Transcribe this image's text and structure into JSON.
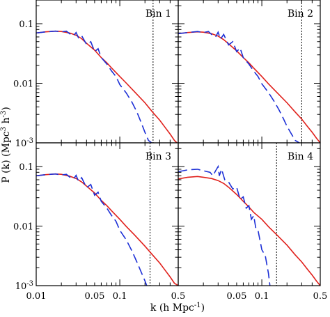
{
  "figure": {
    "xlabel_main": "k (h Mpc",
    "xlabel_sup": "-1",
    "xlabel_end": ")",
    "ylabel_main": "P (k) (Mpc",
    "ylabel_sup1": "3",
    "ylabel_mid": " h",
    "ylabel_sup2": "-3",
    "ylabel_end": ")"
  },
  "chart_data": [
    {
      "type": "line",
      "panel": "top-left",
      "label": "Bin 1",
      "xscale": "log",
      "yscale": "log",
      "xlim": [
        0.01,
        0.5
      ],
      "ylim": [
        0.001,
        0.25
      ],
      "vline_x": 0.25,
      "series": [
        {
          "color": "#e0201b",
          "style": "solid",
          "x": [
            0.01,
            0.013,
            0.017,
            0.02,
            0.025,
            0.03,
            0.035,
            0.04,
            0.05,
            0.06,
            0.07,
            0.08,
            0.1,
            0.12,
            0.15,
            0.2,
            0.25,
            0.3,
            0.35,
            0.4,
            0.45,
            0.5
          ],
          "y": [
            0.07,
            0.073,
            0.075,
            0.074,
            0.07,
            0.064,
            0.056,
            0.047,
            0.036,
            0.027,
            0.022,
            0.018,
            0.013,
            0.01,
            0.0072,
            0.0047,
            0.0032,
            0.0024,
            0.0018,
            0.0014,
            0.0011,
            0.00095
          ]
        },
        {
          "color": "#1c2fd6",
          "style": "dashed",
          "x": [
            0.01,
            0.013,
            0.017,
            0.02,
            0.023,
            0.025,
            0.028,
            0.03,
            0.032,
            0.035,
            0.04,
            0.045,
            0.05,
            0.055,
            0.06,
            0.07,
            0.08,
            0.09,
            0.1,
            0.12,
            0.14,
            0.16,
            0.18,
            0.2,
            0.22,
            0.24
          ],
          "y": [
            0.07,
            0.073,
            0.075,
            0.073,
            0.075,
            0.068,
            0.063,
            0.071,
            0.058,
            0.063,
            0.045,
            0.05,
            0.034,
            0.038,
            0.027,
            0.021,
            0.016,
            0.013,
            0.0095,
            0.0068,
            0.0048,
            0.0033,
            0.0022,
            0.0015,
            0.0011,
            0.001
          ]
        }
      ]
    },
    {
      "type": "line",
      "panel": "top-right",
      "label": "Bin 2",
      "xscale": "log",
      "yscale": "log",
      "xlim": [
        0.01,
        0.5
      ],
      "ylim": [
        0.001,
        0.25
      ],
      "vline_x": 0.3,
      "series": [
        {
          "color": "#e0201b",
          "style": "solid",
          "x": [
            0.01,
            0.013,
            0.017,
            0.02,
            0.025,
            0.03,
            0.035,
            0.04,
            0.05,
            0.06,
            0.07,
            0.08,
            0.1,
            0.12,
            0.15,
            0.2,
            0.25,
            0.3,
            0.35,
            0.4,
            0.45,
            0.5
          ],
          "y": [
            0.068,
            0.071,
            0.073,
            0.072,
            0.068,
            0.062,
            0.054,
            0.046,
            0.035,
            0.027,
            0.022,
            0.018,
            0.013,
            0.0098,
            0.0071,
            0.0047,
            0.0033,
            0.0025,
            0.0019,
            0.0015,
            0.0012,
            0.001
          ]
        },
        {
          "color": "#1c2fd6",
          "style": "dashed",
          "x": [
            0.01,
            0.013,
            0.017,
            0.02,
            0.023,
            0.025,
            0.028,
            0.03,
            0.032,
            0.035,
            0.04,
            0.045,
            0.05,
            0.055,
            0.06,
            0.07,
            0.08,
            0.09,
            0.1,
            0.12,
            0.14,
            0.16,
            0.18,
            0.2,
            0.22,
            0.25,
            0.28
          ],
          "y": [
            0.068,
            0.071,
            0.074,
            0.071,
            0.074,
            0.066,
            0.06,
            0.072,
            0.055,
            0.066,
            0.044,
            0.05,
            0.034,
            0.039,
            0.027,
            0.021,
            0.016,
            0.013,
            0.0098,
            0.007,
            0.005,
            0.0036,
            0.0026,
            0.0019,
            0.0015,
            0.0011,
            0.001
          ]
        }
      ]
    },
    {
      "type": "line",
      "panel": "bottom-left",
      "label": "Bin 3",
      "xscale": "log",
      "yscale": "log",
      "xlim": [
        0.01,
        0.5
      ],
      "ylim": [
        0.001,
        0.25
      ],
      "vline_x": 0.23,
      "series": [
        {
          "color": "#e0201b",
          "style": "solid",
          "x": [
            0.01,
            0.013,
            0.017,
            0.02,
            0.025,
            0.03,
            0.035,
            0.04,
            0.05,
            0.06,
            0.07,
            0.08,
            0.1,
            0.12,
            0.15,
            0.2,
            0.25,
            0.3,
            0.35,
            0.4,
            0.45,
            0.5
          ],
          "y": [
            0.07,
            0.073,
            0.075,
            0.074,
            0.069,
            0.063,
            0.055,
            0.047,
            0.036,
            0.027,
            0.022,
            0.018,
            0.013,
            0.0098,
            0.0071,
            0.0046,
            0.0032,
            0.0024,
            0.0018,
            0.0014,
            0.0011,
            0.001
          ]
        },
        {
          "color": "#1c2fd6",
          "style": "dashed",
          "x": [
            0.01,
            0.013,
            0.017,
            0.02,
            0.023,
            0.025,
            0.028,
            0.03,
            0.032,
            0.035,
            0.04,
            0.045,
            0.05,
            0.055,
            0.06,
            0.07,
            0.08,
            0.09,
            0.1,
            0.12,
            0.14,
            0.16,
            0.18,
            0.2,
            0.21
          ],
          "y": [
            0.07,
            0.073,
            0.075,
            0.072,
            0.074,
            0.067,
            0.062,
            0.071,
            0.057,
            0.065,
            0.044,
            0.05,
            0.033,
            0.037,
            0.026,
            0.02,
            0.015,
            0.012,
            0.0085,
            0.0058,
            0.0038,
            0.0025,
            0.0017,
            0.0012,
            0.001
          ]
        }
      ]
    },
    {
      "type": "line",
      "panel": "bottom-right",
      "label": "Bin 4",
      "xscale": "log",
      "yscale": "log",
      "xlim": [
        0.01,
        0.5
      ],
      "ylim": [
        0.001,
        0.25
      ],
      "vline_x": 0.15,
      "series": [
        {
          "color": "#e0201b",
          "style": "solid",
          "x": [
            0.01,
            0.013,
            0.017,
            0.02,
            0.025,
            0.03,
            0.035,
            0.04,
            0.05,
            0.06,
            0.07,
            0.08,
            0.1,
            0.12,
            0.15,
            0.2,
            0.25,
            0.3,
            0.35,
            0.4,
            0.45,
            0.5
          ],
          "y": [
            0.062,
            0.066,
            0.068,
            0.066,
            0.063,
            0.058,
            0.052,
            0.045,
            0.034,
            0.026,
            0.021,
            0.017,
            0.013,
            0.0098,
            0.0072,
            0.0048,
            0.0033,
            0.0025,
            0.0019,
            0.0015,
            0.0012,
            0.001
          ]
        },
        {
          "color": "#1c2fd6",
          "style": "dashed",
          "x": [
            0.01,
            0.013,
            0.017,
            0.02,
            0.024,
            0.026,
            0.028,
            0.03,
            0.031,
            0.033,
            0.036,
            0.04,
            0.045,
            0.05,
            0.055,
            0.06,
            0.065,
            0.07,
            0.075,
            0.08,
            0.085,
            0.09,
            0.1,
            0.11,
            0.12,
            0.125
          ],
          "y": [
            0.082,
            0.088,
            0.09,
            0.085,
            0.08,
            0.07,
            0.085,
            0.1,
            0.07,
            0.09,
            0.06,
            0.055,
            0.042,
            0.045,
            0.028,
            0.031,
            0.02,
            0.022,
            0.013,
            0.015,
            0.009,
            0.0085,
            0.004,
            0.0032,
            0.0016,
            0.001
          ]
        }
      ]
    }
  ]
}
